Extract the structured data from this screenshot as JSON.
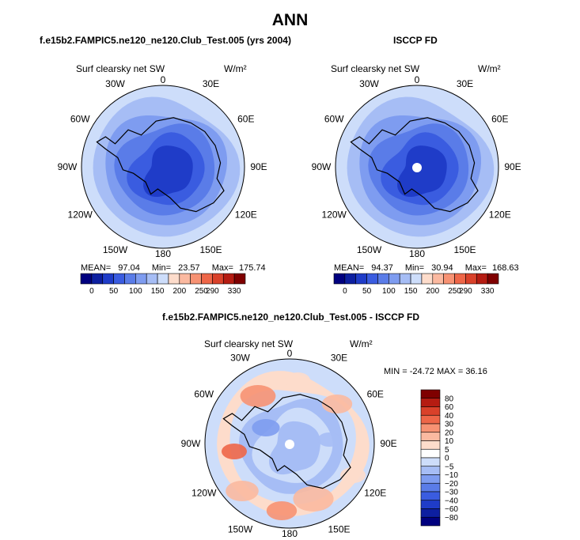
{
  "title": "ANN",
  "panels": [
    {
      "id": "model",
      "subtitle": "f.e15b2.FAMPIC5.ne120_ne120.Club_Test.005 (yrs 2004)",
      "variable": "Surf clearsky net SW",
      "units": "W/m²",
      "stats": {
        "mean_label": "MEAN=",
        "mean": "97.04",
        "min_label": "Min=",
        "min": "23.57",
        "max_label": "Max=",
        "max": "175.74"
      }
    },
    {
      "id": "obs",
      "subtitle": "ISCCP FD",
      "variable": "Surf clearsky net SW",
      "units": "W/m²",
      "stats": {
        "mean_label": "MEAN=",
        "mean": "94.37",
        "min_label": "Min=",
        "min": "30.94",
        "max_label": "Max=",
        "max": "168.63"
      }
    }
  ],
  "diff_panel": {
    "subtitle": "f.e15b2.FAMPIC5.ne120_ne120.Club_Test.005 - ISCCP FD",
    "variable": "Surf clearsky net SW",
    "units": "W/m²",
    "minmax": "MIN = -24.72 MAX =  36.16"
  },
  "lon_labels": [
    "0",
    "30E",
    "60E",
    "90E",
    "120E",
    "150E",
    "180",
    "150W",
    "120W",
    "90W",
    "60W",
    "30W"
  ],
  "colors": {
    "abs_scale": [
      "#00007f",
      "#0d1fa0",
      "#1f3cc8",
      "#3a5ce0",
      "#5a7ce8",
      "#7e9cf0",
      "#a6bdf5",
      "#cdddfa",
      "#fddccb",
      "#fbb9a0",
      "#f79273",
      "#ee6648",
      "#d9412a",
      "#b51c12",
      "#7f0000"
    ],
    "diff_scale": [
      "#7f0000",
      "#b51c12",
      "#d9412a",
      "#ee6648",
      "#f79273",
      "#fbb9a0",
      "#fddccb",
      "#ffffff",
      "#cdddfa",
      "#a6bdf5",
      "#7e9cf0",
      "#5a7ce8",
      "#3a5ce0",
      "#1f3cc8",
      "#0d1fa0",
      "#00007f"
    ]
  },
  "chart_data": [
    {
      "type": "heatmap",
      "projection": "south polar stereographic",
      "title": "f.e15b2.FAMPIC5.ne120_ne120.Club_Test.005 (yrs 2004)",
      "variable": "Surf clearsky net SW",
      "units": "W/m2",
      "mean": 97.04,
      "min": 23.57,
      "max": 175.74,
      "contour_levels": [
        0,
        25,
        50,
        75,
        100,
        125,
        150,
        175,
        200,
        225,
        250,
        275,
        290,
        310,
        330
      ],
      "colorbar_tick_labels": [
        "0",
        "50",
        "100",
        "150",
        "200",
        "250",
        "290",
        "330"
      ]
    },
    {
      "type": "heatmap",
      "projection": "south polar stereographic",
      "title": "ISCCP FD",
      "variable": "Surf clearsky net SW",
      "units": "W/m2",
      "mean": 94.37,
      "min": 30.94,
      "max": 168.63,
      "contour_levels": [
        0,
        25,
        50,
        75,
        100,
        125,
        150,
        175,
        200,
        225,
        250,
        275,
        290,
        310,
        330
      ],
      "colorbar_tick_labels": [
        "0",
        "50",
        "100",
        "150",
        "200",
        "250",
        "290",
        "330"
      ]
    },
    {
      "type": "heatmap",
      "projection": "south polar stereographic",
      "title": "f.e15b2.FAMPIC5.ne120_ne120.Club_Test.005 - ISCCP FD",
      "variable": "Surf clearsky net SW",
      "units": "W/m2",
      "min": -24.72,
      "max": 36.16,
      "contour_levels": [
        80,
        60,
        40,
        30,
        20,
        10,
        5,
        0,
        -5,
        -10,
        -20,
        -30,
        -40,
        -60,
        -80
      ],
      "colorbar_tick_labels": [
        "80",
        "60",
        "40",
        "30",
        "20",
        "10",
        "5",
        "0",
        "−5",
        "−10",
        "−20",
        "−30",
        "−40",
        "−60",
        "−80"
      ]
    }
  ]
}
